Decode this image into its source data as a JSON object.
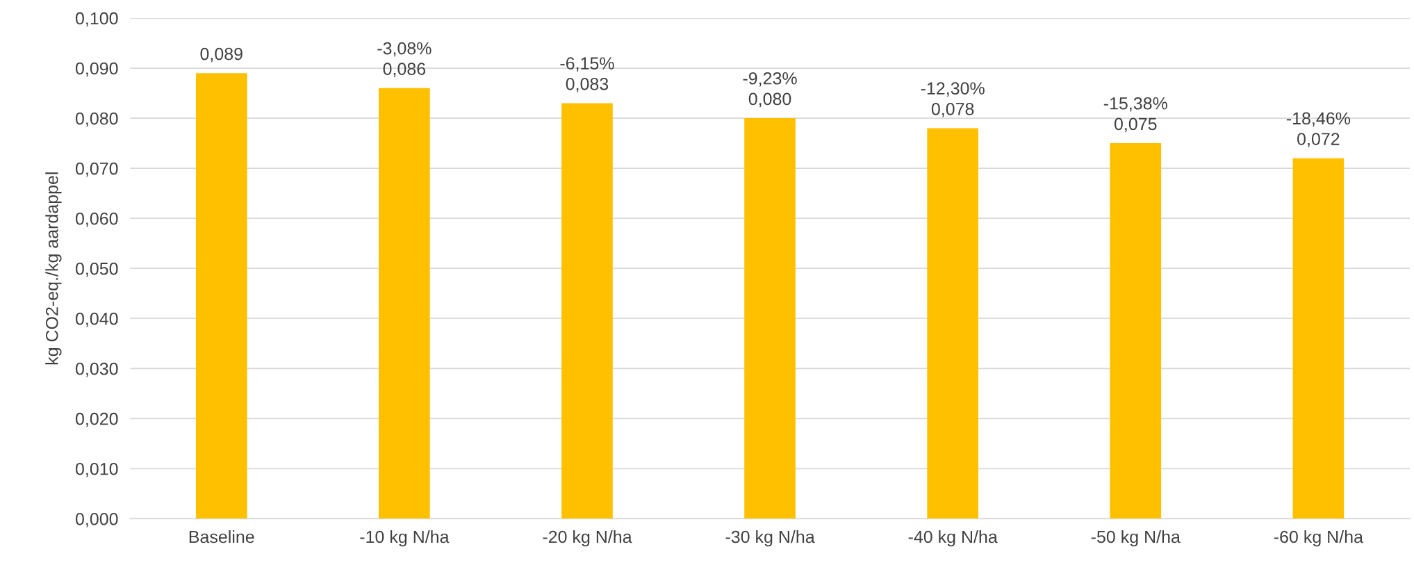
{
  "chart_data": {
    "type": "bar",
    "ylabel": "kg CO2-eq./kg aardappel",
    "categories": [
      "Baseline",
      "-10 kg N/ha",
      "-20 kg N/ha",
      "-30 kg N/ha",
      "-40 kg N/ha",
      "-50 kg N/ha",
      "-60 kg N/ha"
    ],
    "values": [
      0.089,
      0.086,
      0.083,
      0.08,
      0.078,
      0.075,
      0.072
    ],
    "value_labels": [
      "0,089",
      "-3,08%\n0,086",
      "-6,15%\n0,083",
      "-9,23%\n0,080",
      "-12,30%\n0,078",
      "-15,38%\n0,075",
      "-18,46%\n0,072"
    ],
    "color": "#ffc000",
    "ylim": [
      0,
      0.1
    ],
    "yticks": [
      {
        "value": 0,
        "label": "0,000"
      },
      {
        "value": 0.01,
        "label": "0,010"
      },
      {
        "value": 0.02,
        "label": "0,020"
      },
      {
        "value": 0.03,
        "label": "0,030"
      },
      {
        "value": 0.04,
        "label": "0,040"
      },
      {
        "value": 0.05,
        "label": "0,050"
      },
      {
        "value": 0.06,
        "label": "0,060"
      },
      {
        "value": 0.07,
        "label": "0,070"
      },
      {
        "value": 0.08,
        "label": "0,080"
      },
      {
        "value": 0.09,
        "label": "0,090"
      },
      {
        "value": 0.1,
        "label": "0,100"
      }
    ],
    "grid": "y",
    "legend": false
  }
}
